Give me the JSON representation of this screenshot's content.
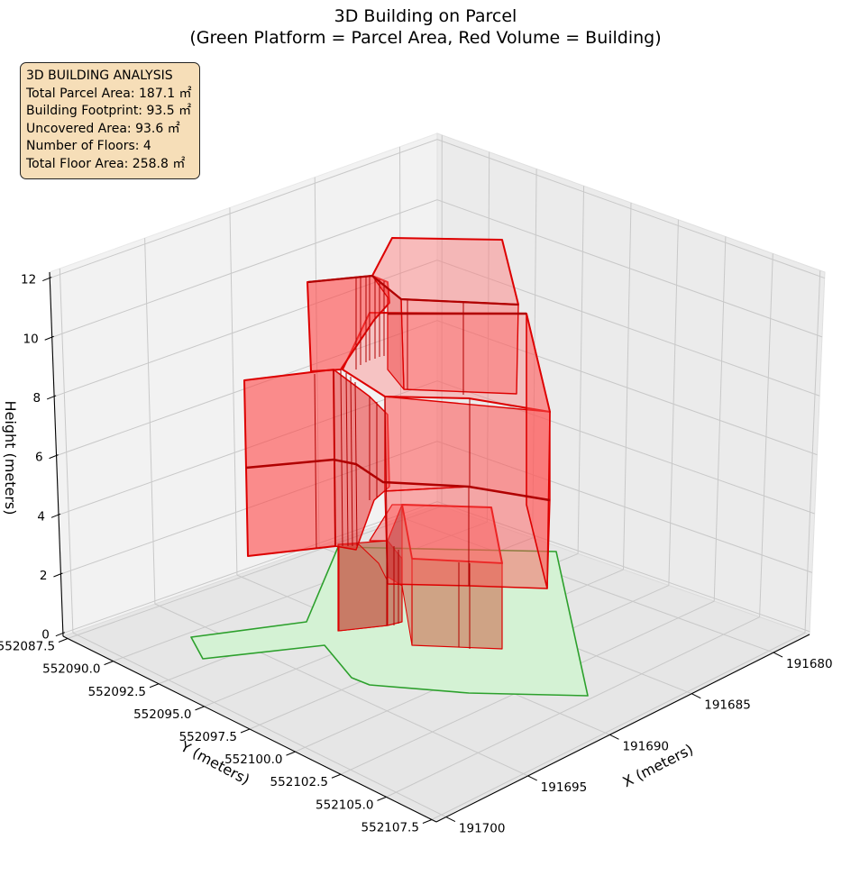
{
  "chart_data": {
    "type": "3d-polygons",
    "title_line1": "3D Building on Parcel",
    "title_line2": "(Green Platform = Parcel Area, Red Volume = Building)",
    "xlabel": "X (meters)",
    "ylabel": "Y (meters)",
    "zlabel": "Height (meters)",
    "x_ticks": [
      "191680",
      "191685",
      "191690",
      "191695",
      "191700"
    ],
    "y_ticks": [
      "552087.5",
      "552090.0",
      "552092.5",
      "552095.0",
      "552097.5",
      "552100.0",
      "552102.5",
      "552105.0",
      "552107.5"
    ],
    "z_ticks": [
      "0",
      "2",
      "4",
      "6",
      "8",
      "10",
      "12"
    ],
    "zlim": [
      0,
      12
    ],
    "grid": true,
    "parcel_color": "#2ca02c",
    "parcel_fill": "#d4f2d4",
    "building_color": "#e00000",
    "building_fill": "#ff4d4d"
  },
  "analysis": {
    "heading": "3D BUILDING ANALYSIS",
    "lines": [
      "Total Parcel Area: 187.1 ㎡",
      "Building Footprint: 93.5 ㎡",
      "Uncovered Area: 93.6 ㎡",
      "Number of Floors: 4",
      "Total Floor Area: 258.8 ㎡"
    ]
  }
}
